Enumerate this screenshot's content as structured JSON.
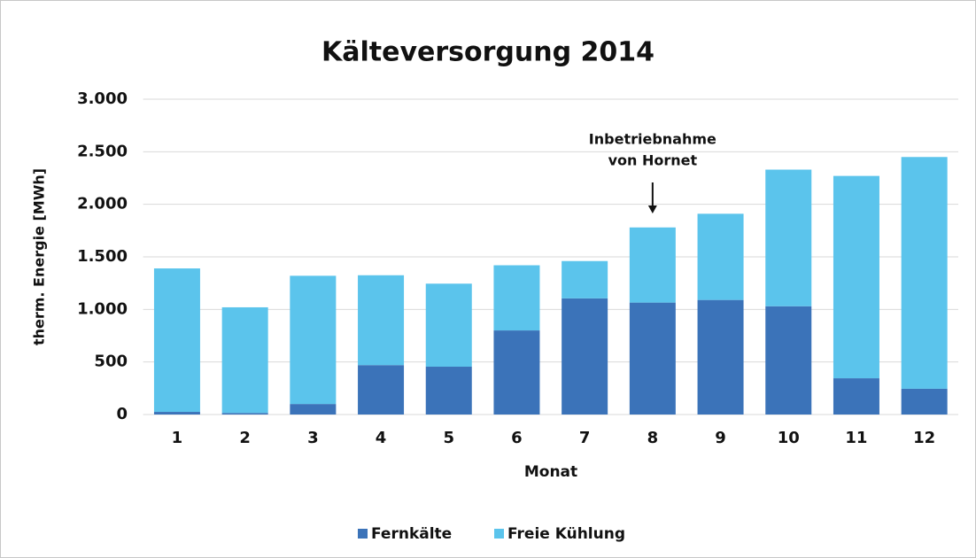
{
  "chart_data": {
    "type": "stacked_bar",
    "title": "Kälteversorgung 2014",
    "x_label": "Monat",
    "y_label": "therm. Energie [MWh]",
    "categories": [
      "1",
      "2",
      "3",
      "4",
      "5",
      "6",
      "7",
      "8",
      "9",
      "10",
      "11",
      "12"
    ],
    "series": [
      {
        "name": "Fernkälte",
        "color": "#3b73b9",
        "values": [
          25,
          15,
          100,
          470,
          455,
          800,
          1105,
          1065,
          1090,
          1030,
          345,
          245
        ]
      },
      {
        "name": "Freie Kühlung",
        "color": "#5bc4ec",
        "values": [
          1365,
          1005,
          1220,
          855,
          790,
          620,
          355,
          715,
          820,
          1300,
          1925,
          2205
        ]
      }
    ],
    "ylim": [
      0,
      3000
    ],
    "yticks": [
      0,
      500,
      {
        "value": 1000,
        "label": "1.000"
      },
      {
        "value": 1500,
        "label": "1.500"
      },
      {
        "value": 2000,
        "label": "2.000"
      },
      {
        "value": 2500,
        "label": "2.500"
      },
      {
        "value": 3000,
        "label": "3.000"
      }
    ],
    "grid": true,
    "legend": "bottom",
    "annotation": [
      "Inbetriebnahme",
      "von Hornet"
    ]
  }
}
